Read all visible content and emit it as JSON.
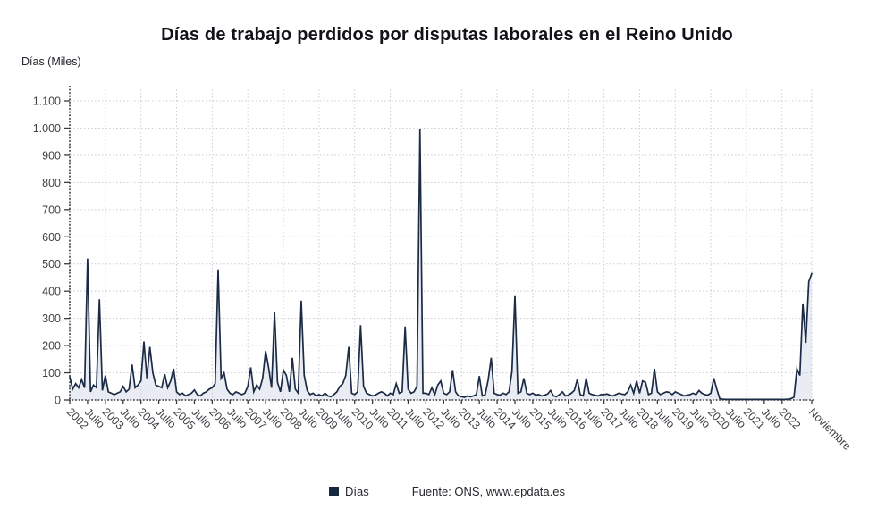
{
  "title": "Días de trabajo perdidos por disputas laborales en el Reino Unido",
  "y_axis": {
    "unit_label": "Días (Miles)",
    "tick_labels": [
      "0",
      "100",
      "200",
      "300",
      "400",
      "500",
      "600",
      "700",
      "800",
      "900",
      "1.000",
      "1.100"
    ],
    "tick_values": [
      0,
      100,
      200,
      300,
      400,
      500,
      600,
      700,
      800,
      900,
      1000,
      1100
    ]
  },
  "x_axis": {
    "tick_labels": [
      "2002",
      "Julio",
      "2003",
      "Julio",
      "2004",
      "Julio",
      "2005",
      "Julio",
      "2006",
      "Julio",
      "2007",
      "Julio",
      "2008",
      "Julio",
      "2009",
      "Julio",
      "2010",
      "Julio",
      "2011",
      "Julio",
      "2012",
      "Julio",
      "2013",
      "Julio",
      "2014",
      "Julio",
      "2015",
      "Julio",
      "2016",
      "Julio",
      "2017",
      "Julio",
      "2018",
      "Julio",
      "2019",
      "Julio",
      "2020",
      "Julio",
      "2021",
      "Julio",
      "2022",
      "Noviembre"
    ]
  },
  "legend": {
    "series_label": "Días",
    "source_label": "Fuente: ONS, www.epdata.es"
  },
  "colors": {
    "line": "#1b2b45",
    "fill": "#e9edf3",
    "grid": "#c9ccd6",
    "axis": "#3a3a40",
    "tick_text": "#3f3f46",
    "title_text": "#111318",
    "legend_swatch": "#15293f"
  },
  "chart_data": {
    "type": "area",
    "title": "Días de trabajo perdidos por disputas laborales en el Reino Unido",
    "ylabel": "Días (Miles)",
    "ylim": [
      0,
      1150
    ],
    "grid": true,
    "legend_position": "bottom",
    "frequency": "monthly",
    "x_start": "2002-01",
    "x_end": "2022-11",
    "series": [
      {
        "name": "Días",
        "values": [
          85,
          40,
          60,
          45,
          75,
          45,
          520,
          30,
          55,
          45,
          370,
          35,
          90,
          30,
          25,
          20,
          25,
          30,
          50,
          30,
          40,
          130,
          45,
          55,
          70,
          215,
          80,
          195,
          100,
          55,
          50,
          45,
          95,
          45,
          70,
          115,
          30,
          20,
          25,
          15,
          20,
          25,
          37,
          20,
          15,
          25,
          30,
          40,
          45,
          60,
          480,
          80,
          100,
          40,
          25,
          20,
          30,
          25,
          20,
          25,
          50,
          120,
          30,
          55,
          40,
          80,
          180,
          120,
          45,
          325,
          65,
          30,
          110,
          90,
          30,
          155,
          40,
          25,
          365,
          90,
          35,
          20,
          25,
          15,
          20,
          15,
          25,
          15,
          12,
          20,
          30,
          50,
          60,
          90,
          195,
          25,
          20,
          30,
          275,
          50,
          25,
          20,
          15,
          18,
          25,
          30,
          25,
          15,
          25,
          20,
          60,
          25,
          30,
          270,
          40,
          25,
          30,
          50,
          995,
          25,
          25,
          20,
          45,
          20,
          55,
          70,
          25,
          20,
          30,
          110,
          30,
          15,
          12,
          10,
          15,
          12,
          15,
          20,
          88,
          15,
          20,
          75,
          155,
          25,
          20,
          18,
          25,
          20,
          30,
          105,
          385,
          25,
          30,
          80,
          25,
          20,
          25,
          18,
          20,
          15,
          18,
          22,
          35,
          15,
          12,
          20,
          30,
          15,
          18,
          25,
          35,
          75,
          20,
          15,
          80,
          25,
          20,
          18,
          15,
          20,
          20,
          22,
          18,
          15,
          20,
          25,
          22,
          20,
          30,
          55,
          25,
          70,
          25,
          70,
          65,
          20,
          25,
          115,
          30,
          20,
          25,
          30,
          28,
          20,
          30,
          25,
          20,
          15,
          18,
          20,
          25,
          20,
          35,
          25,
          20,
          18,
          25,
          80,
          40,
          5,
          3,
          2,
          2,
          2,
          2,
          2,
          2,
          2,
          2,
          2,
          2,
          2,
          2,
          2,
          2,
          2,
          2,
          2,
          2,
          2,
          2,
          2,
          3,
          5,
          10,
          115,
          90,
          355,
          210,
          435,
          465
        ]
      }
    ]
  }
}
